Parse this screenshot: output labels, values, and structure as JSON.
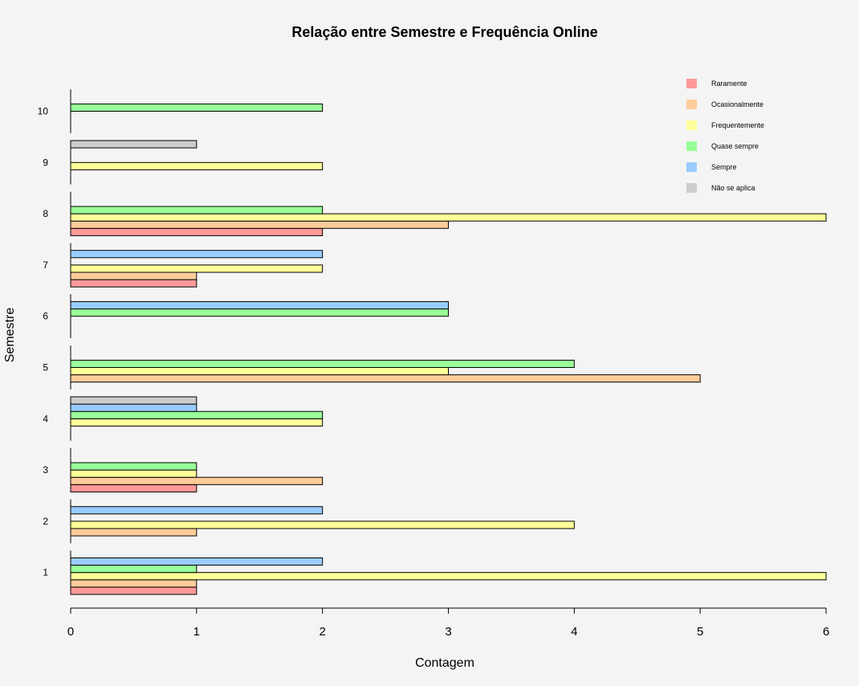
{
  "chart_data": {
    "type": "bar",
    "orientation": "horizontal",
    "title": "Relação entre Semestre e Frequência Online",
    "xlabel": "Contagem",
    "ylabel": "Semestre",
    "categories": [
      "1",
      "2",
      "3",
      "4",
      "5",
      "6",
      "7",
      "8",
      "9",
      "10"
    ],
    "xlim": [
      0,
      6
    ],
    "xticks": [
      "0",
      "1",
      "2",
      "3",
      "4",
      "5",
      "6"
    ],
    "legend_position": "top-right",
    "series": [
      {
        "name": "Raramente",
        "color": "#ff9999",
        "values": [
          1,
          0,
          1,
          0,
          0,
          0,
          1,
          2,
          0,
          0
        ]
      },
      {
        "name": "Ocasionalmente",
        "color": "#ffcc99",
        "values": [
          1,
          1,
          2,
          0,
          5,
          0,
          1,
          3,
          0,
          0
        ]
      },
      {
        "name": "Frequentemente",
        "color": "#ffff99",
        "values": [
          6,
          4,
          1,
          2,
          3,
          0,
          2,
          6,
          2,
          0
        ]
      },
      {
        "name": "Quase sempre",
        "color": "#99ff99",
        "values": [
          1,
          0,
          1,
          2,
          4,
          3,
          0,
          2,
          0,
          2
        ]
      },
      {
        "name": "Sempre",
        "color": "#99ccff",
        "values": [
          2,
          2,
          0,
          1,
          0,
          3,
          2,
          0,
          0,
          0
        ]
      },
      {
        "name": "Não se aplica",
        "color": "#cccccc",
        "values": [
          0,
          0,
          0,
          1,
          0,
          0,
          0,
          0,
          1,
          0
        ]
      }
    ]
  }
}
